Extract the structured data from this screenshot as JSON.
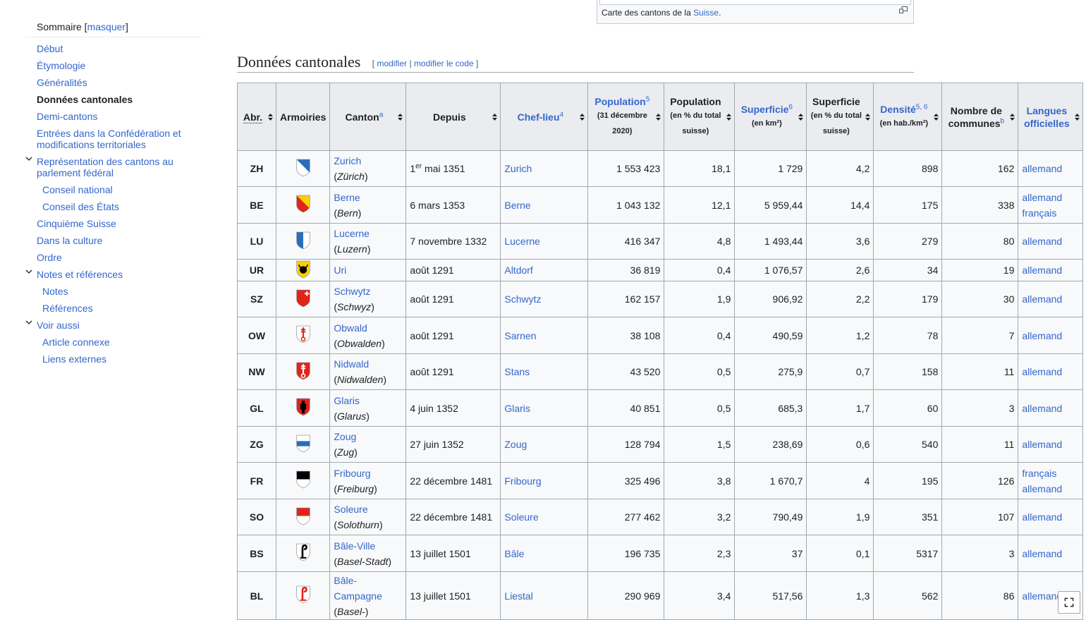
{
  "toc": {
    "title": "Sommaire",
    "hide_label": "masquer",
    "items": [
      {
        "label": "Début",
        "level": 1
      },
      {
        "label": "Étymologie",
        "level": 1
      },
      {
        "label": "Généralités",
        "level": 1
      },
      {
        "label": "Données cantonales",
        "level": 1,
        "active": true
      },
      {
        "label": "Demi-cantons",
        "level": 1
      },
      {
        "label": "Entrées dans la Confédération et modifications territoriales",
        "level": 1
      },
      {
        "label": "Représentation des cantons au parlement fédéral",
        "level": 1,
        "expandable": true
      },
      {
        "label": "Conseil national",
        "level": 2
      },
      {
        "label": "Conseil des États",
        "level": 2
      },
      {
        "label": "Cinquième Suisse",
        "level": 1
      },
      {
        "label": "Dans la culture",
        "level": 1
      },
      {
        "label": "Ordre",
        "level": 1
      },
      {
        "label": "Notes et références",
        "level": 1,
        "expandable": true
      },
      {
        "label": "Notes",
        "level": 2
      },
      {
        "label": "Références",
        "level": 2
      },
      {
        "label": "Voir aussi",
        "level": 1,
        "expandable": true
      },
      {
        "label": "Article connexe",
        "level": 2
      },
      {
        "label": "Liens externes",
        "level": 2
      }
    ]
  },
  "caption": {
    "text": "Carte des cantons de la ",
    "link": "Suisse",
    "end": "."
  },
  "section": {
    "title": "Données cantonales",
    "edit": "modifier",
    "edit_code": "modifier le code"
  },
  "table": {
    "headers": {
      "abr": "Abr.",
      "armoiries": "Armoiries",
      "canton": "Canton",
      "canton_note": "a",
      "depuis": "Depuis",
      "chef": "Chef-lieu",
      "chef_note": "4",
      "pop": "Population",
      "pop_note": "5",
      "pop_sub": "(31 décembre 2020)",
      "pop_pct": "Population",
      "pop_pct_sub": "(en % du total suisse)",
      "sup": "Superficie",
      "sup_note": "6",
      "sup_sub": "(en km²)",
      "sup_pct": "Superficie",
      "sup_pct_sub": "(en % du total suisse)",
      "dens": "Densité",
      "dens_note": "5, 6",
      "dens_sub": "(en hab./km²)",
      "comm": "Nombre de communes",
      "comm_note": "b",
      "lang": "Langues officielles"
    },
    "rows": [
      {
        "abr": "ZH",
        "canton": "Zurich",
        "local": "Zürich",
        "depuis": "1",
        "depuis_sup": "er",
        "depuis_rest": " mai 1351",
        "chef": "Zurich",
        "pop": "1 553 423",
        "pop_pct": "18,1",
        "sup": "1 729",
        "sup_pct": "4,2",
        "dens": "898",
        "comm": "162",
        "lang": [
          "allemand"
        ],
        "colors": [
          "#ffffff",
          "#2a6ebb"
        ],
        "style": "diag"
      },
      {
        "abr": "BE",
        "canton": "Berne",
        "local": "Bern",
        "depuis": "6 mars 1353",
        "chef": "Berne",
        "pop": "1 043 132",
        "pop_pct": "12,1",
        "sup": "5 959,44",
        "sup_pct": "14,4",
        "dens": "175",
        "comm": "338",
        "lang": [
          "allemand",
          "français"
        ],
        "colors": [
          "#e2231a",
          "#fbd000"
        ],
        "style": "diag"
      },
      {
        "abr": "LU",
        "canton": "Lucerne",
        "local": "Luzern",
        "depuis": "7 novembre 1332",
        "chef": "Lucerne",
        "pop": "416 347",
        "pop_pct": "4,8",
        "sup": "1 493,44",
        "sup_pct": "3,6",
        "dens": "279",
        "comm": "80",
        "lang": [
          "allemand"
        ],
        "colors": [
          "#2a6ebb",
          "#ffffff"
        ],
        "style": "vsplit"
      },
      {
        "abr": "UR",
        "canton": "Uri",
        "local": "",
        "depuis": "août 1291",
        "chef": "Altdorf",
        "pop": "36 819",
        "pop_pct": "0,4",
        "sup": "1 076,57",
        "sup_pct": "2,6",
        "dens": "34",
        "comm": "19",
        "lang": [
          "allemand"
        ],
        "colors": [
          "#fbd000",
          "#000000"
        ],
        "style": "bull"
      },
      {
        "abr": "SZ",
        "canton": "Schwytz",
        "local": "Schwyz",
        "depuis": "août 1291",
        "chef": "Schwytz",
        "pop": "162 157",
        "pop_pct": "1,9",
        "sup": "906,92",
        "sup_pct": "2,2",
        "dens": "179",
        "comm": "30",
        "lang": [
          "allemand"
        ],
        "colors": [
          "#e2231a",
          "#ffffff"
        ],
        "style": "cross"
      },
      {
        "abr": "OW",
        "canton": "Obwald",
        "local": "Obwalden",
        "depuis": "août 1291",
        "chef": "Sarnen",
        "pop": "38 108",
        "pop_pct": "0,4",
        "sup": "490,59",
        "sup_pct": "1,2",
        "dens": "78",
        "comm": "7",
        "lang": [
          "allemand"
        ],
        "colors": [
          "#ffffff",
          "#e2231a"
        ],
        "style": "key"
      },
      {
        "abr": "NW",
        "canton": "Nidwald",
        "local": "Nidwalden",
        "depuis": "août 1291",
        "chef": "Stans",
        "pop": "43 520",
        "pop_pct": "0,5",
        "sup": "275,9",
        "sup_pct": "0,7",
        "dens": "158",
        "comm": "11",
        "lang": [
          "allemand"
        ],
        "colors": [
          "#e2231a",
          "#ffffff"
        ],
        "style": "key"
      },
      {
        "abr": "GL",
        "canton": "Glaris",
        "local": "Glarus",
        "depuis": "4 juin 1352",
        "chef": "Glaris",
        "pop": "40 851",
        "pop_pct": "0,5",
        "sup": "685,3",
        "sup_pct": "1,7",
        "dens": "60",
        "comm": "3",
        "lang": [
          "allemand"
        ],
        "colors": [
          "#e2231a",
          "#000000"
        ],
        "style": "fig"
      },
      {
        "abr": "ZG",
        "canton": "Zoug",
        "local": "Zug",
        "depuis": "27 juin 1352",
        "chef": "Zoug",
        "pop": "128 794",
        "pop_pct": "1,5",
        "sup": "238,69",
        "sup_pct": "0,6",
        "dens": "540",
        "comm": "11",
        "lang": [
          "allemand"
        ],
        "colors": [
          "#ffffff",
          "#2a6ebb"
        ],
        "style": "band"
      },
      {
        "abr": "FR",
        "canton": "Fribourg",
        "local": "Freiburg",
        "depuis": "22 décembre 1481",
        "chef": "Fribourg",
        "pop": "325 496",
        "pop_pct": "3,8",
        "sup": "1 670,7",
        "sup_pct": "4",
        "dens": "195",
        "comm": "126",
        "lang": [
          "français",
          "allemand"
        ],
        "colors": [
          "#000000",
          "#ffffff"
        ],
        "style": "hsplit"
      },
      {
        "abr": "SO",
        "canton": "Soleure",
        "local": "Solothurn",
        "depuis": "22 décembre 1481",
        "chef": "Soleure",
        "pop": "277 462",
        "pop_pct": "3,2",
        "sup": "790,49",
        "sup_pct": "1,9",
        "dens": "351",
        "comm": "107",
        "lang": [
          "allemand"
        ],
        "colors": [
          "#e2231a",
          "#ffffff"
        ],
        "style": "hsplit"
      },
      {
        "abr": "BS",
        "canton": "Bâle-Ville",
        "local": "Basel-Stadt",
        "depuis": "13 juillet 1501",
        "chef": "Bâle",
        "pop": "196 735",
        "pop_pct": "2,3",
        "sup": "37",
        "sup_pct": "0,1",
        "dens": "5317",
        "comm": "3",
        "lang": [
          "allemand"
        ],
        "colors": [
          "#ffffff",
          "#000000"
        ],
        "style": "crozier"
      },
      {
        "abr": "BL",
        "canton": "Bâle-Campagne",
        "local": "Basel-",
        "depuis": "13 juillet 1501",
        "chef": "Liestal",
        "pop": "290 969",
        "pop_pct": "3,4",
        "sup": "517,56",
        "sup_pct": "1,3",
        "dens": "562",
        "comm": "86",
        "lang": [
          "allemand"
        ],
        "colors": [
          "#ffffff",
          "#e2231a"
        ],
        "style": "crozier"
      }
    ]
  }
}
